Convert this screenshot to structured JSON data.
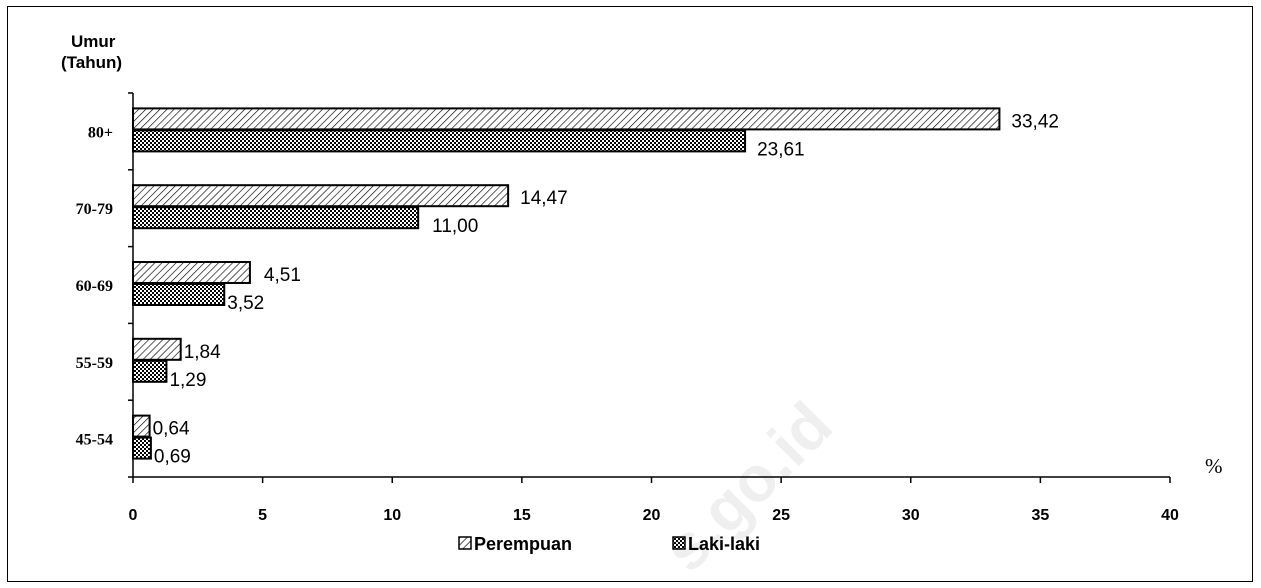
{
  "chart_data": {
    "type": "bar",
    "orientation": "horizontal",
    "y_title": "Umur\n(Tahun)",
    "x_unit": "%",
    "categories": [
      "80+",
      "70-79",
      "60-69",
      "55-59",
      "45-54"
    ],
    "series": [
      {
        "name": "Perempuan",
        "values": [
          33.42,
          14.47,
          4.51,
          1.84,
          0.64
        ],
        "labels": [
          "33,42",
          "14,47",
          "4,51",
          "1,84",
          "0,64"
        ],
        "pattern": "diagonal-hatch"
      },
      {
        "name": "Laki-laki",
        "values": [
          23.61,
          11.0,
          3.52,
          1.29,
          0.69
        ],
        "labels": [
          "23,61",
          "11,00",
          "3,52",
          "1,29",
          "0,69"
        ],
        "pattern": "cross-hatch"
      }
    ],
    "xlim": [
      0,
      40
    ],
    "xticks": [
      0,
      5,
      10,
      15,
      20,
      25,
      30,
      35,
      40
    ],
    "grid": false,
    "legend_position": "bottom"
  },
  "watermark": "s.go.id"
}
